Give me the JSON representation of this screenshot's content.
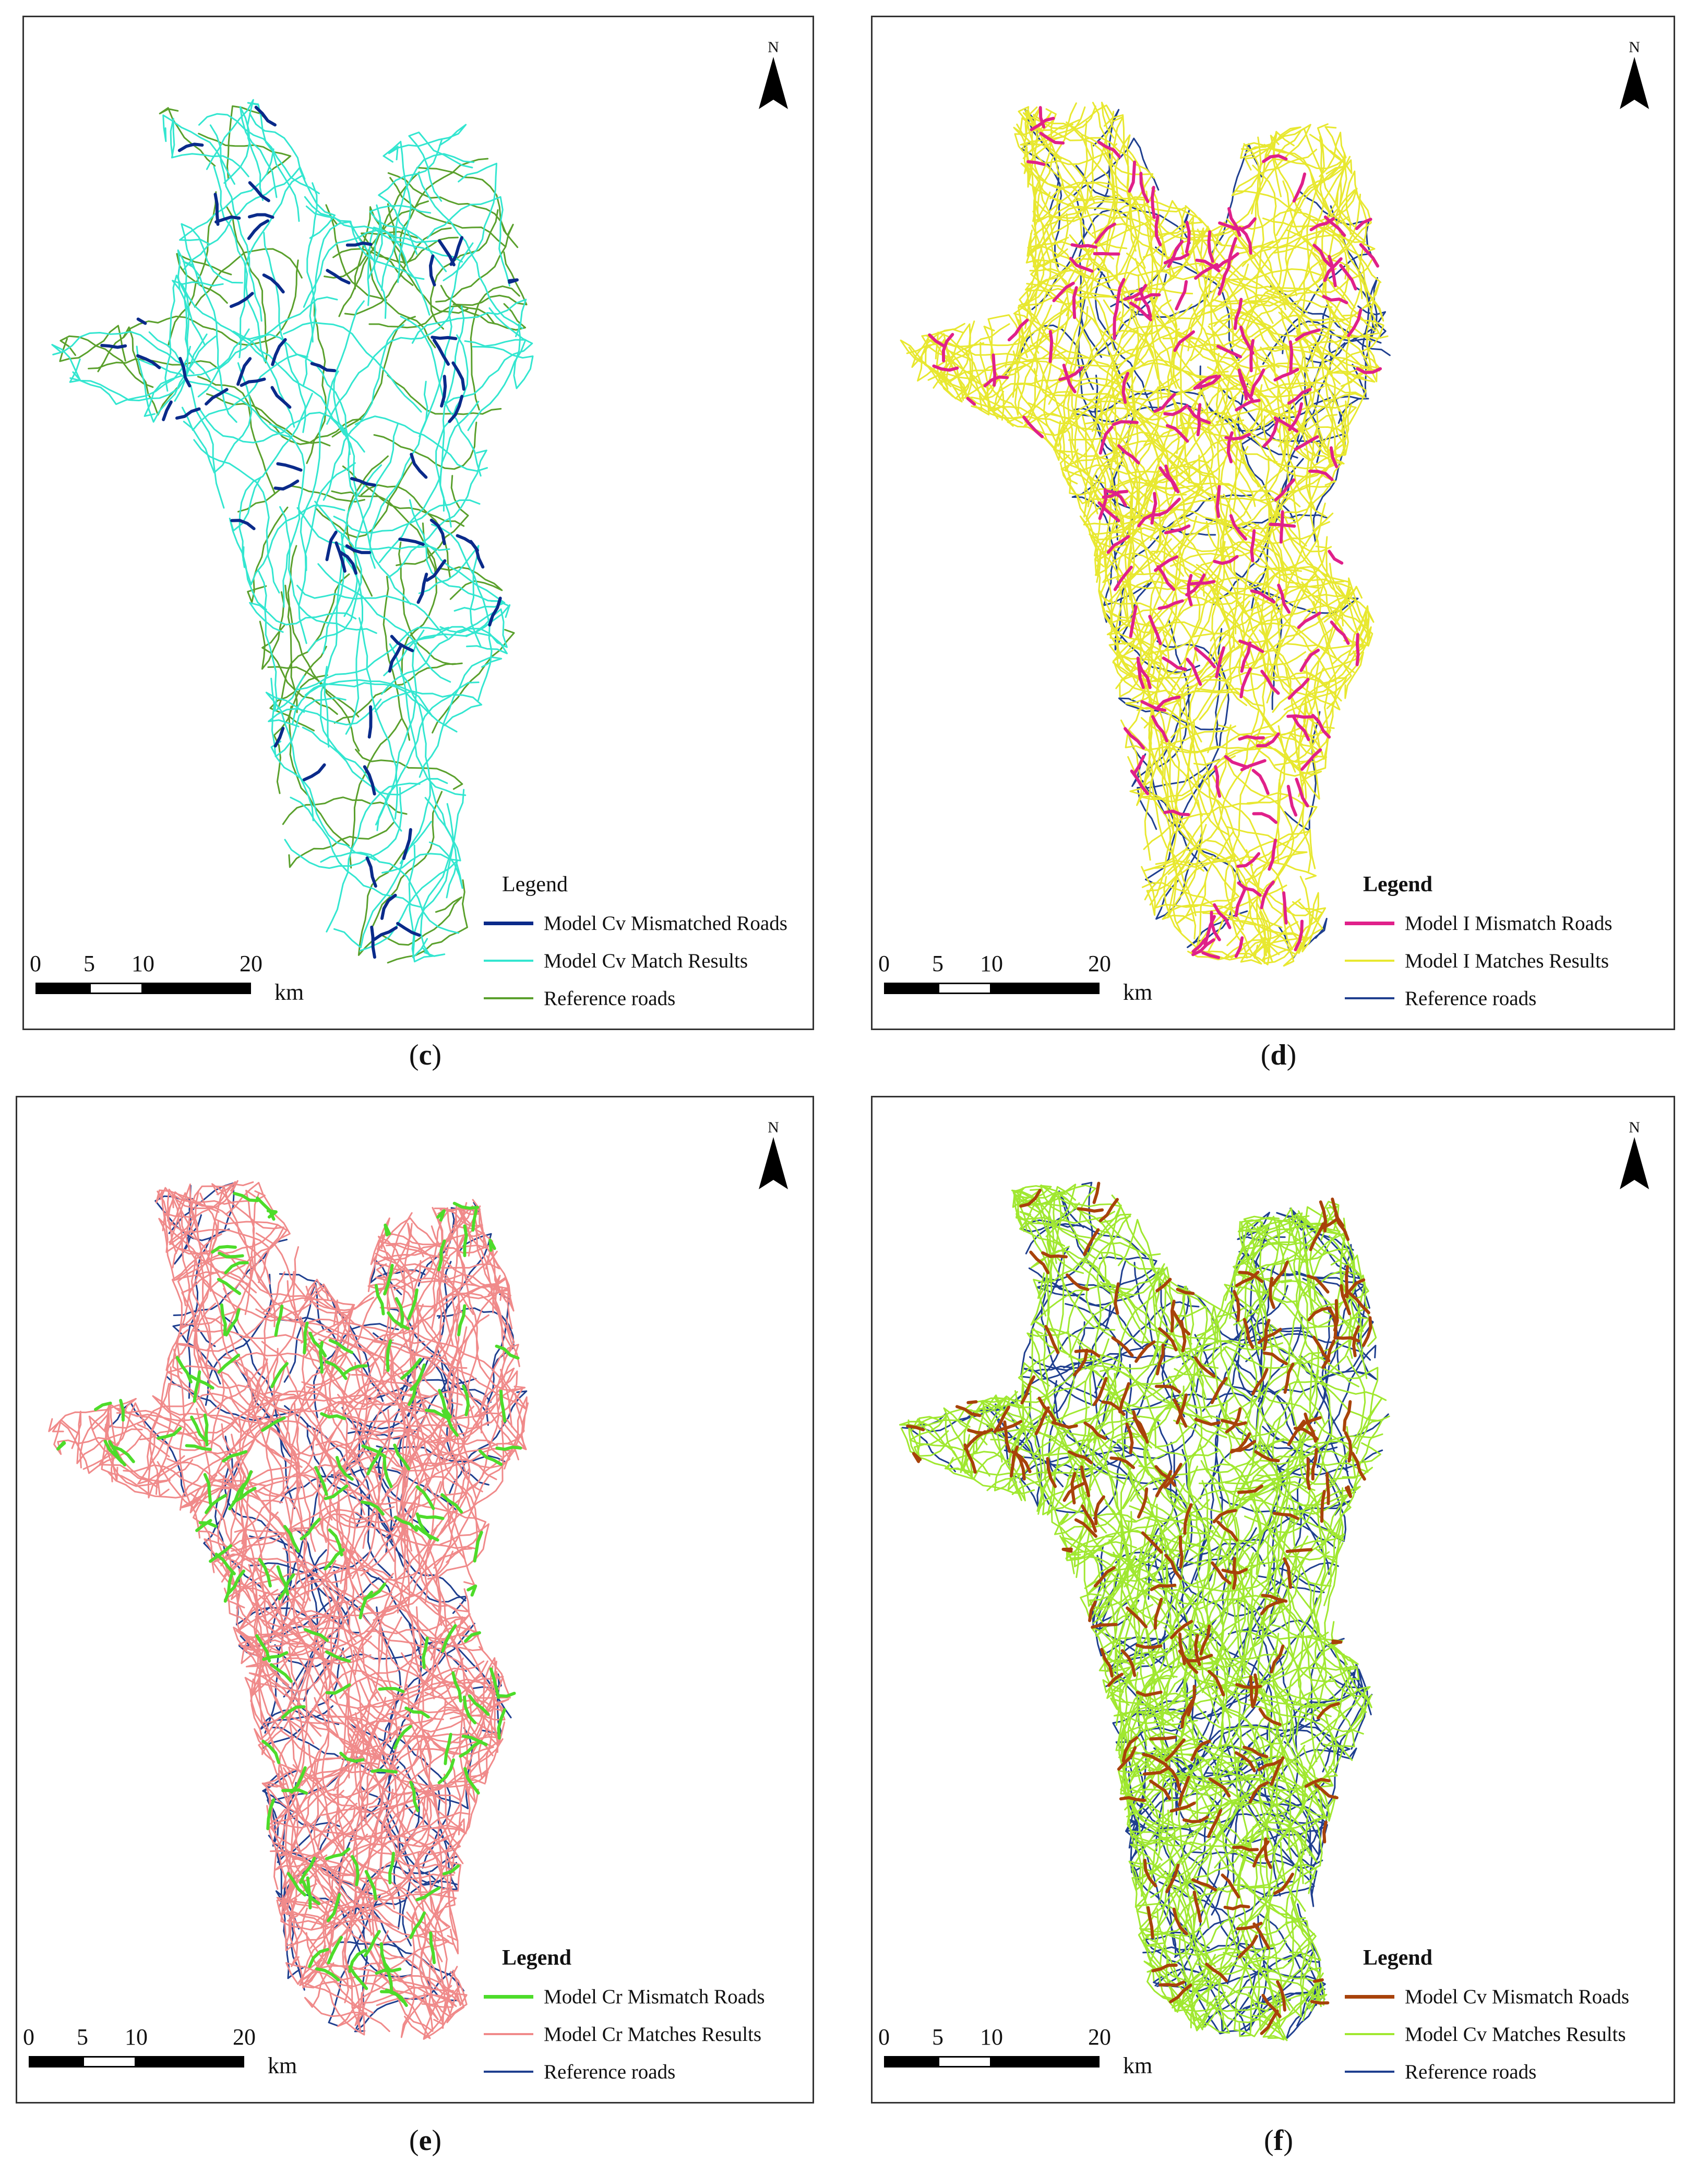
{
  "figure": {
    "panels": [
      {
        "id": "c",
        "caption": "c",
        "north_label": "N",
        "legend_title": "Legend",
        "legend_title_bold": false,
        "legend_items": [
          {
            "label": "Model Cv Mismatched Roads",
            "color": "#0a2a8a"
          },
          {
            "label": "Model Cv Match Results",
            "color": "#33e6d0"
          },
          {
            "label": "Reference roads",
            "color": "#5aa02c"
          }
        ],
        "scale_labels": [
          "0",
          "5",
          "10",
          "20"
        ],
        "scale_unit": "km",
        "colors": {
          "primary": "#33e6d0",
          "secondary": "#5aa02c",
          "mismatch": "#0a2a8a"
        }
      },
      {
        "id": "d",
        "caption": "d",
        "north_label": "N",
        "legend_title": "Legend",
        "legend_title_bold": true,
        "legend_items": [
          {
            "label": "Model I Mismatch Roads",
            "color": "#e0208a"
          },
          {
            "label": "Model I Matches Results",
            "color": "#e8e830"
          },
          {
            "label": "Reference roads",
            "color": "#1f3f8f"
          }
        ],
        "scale_labels": [
          "0",
          "5",
          "10",
          "20"
        ],
        "scale_unit": "km",
        "colors": {
          "primary": "#e8e830",
          "secondary": "#1f3f8f",
          "mismatch": "#e0208a"
        }
      },
      {
        "id": "e",
        "caption": "e",
        "north_label": "N",
        "legend_title": "Legend",
        "legend_title_bold": true,
        "legend_items": [
          {
            "label": "Model Cr Mismatch Roads",
            "color": "#4ddc2a"
          },
          {
            "label": "Model Cr Matches Results",
            "color": "#f08a8a"
          },
          {
            "label": "Reference roads",
            "color": "#1f3f8f"
          }
        ],
        "scale_labels": [
          "0",
          "5",
          "10",
          "20"
        ],
        "scale_unit": "km",
        "colors": {
          "primary": "#f08a8a",
          "secondary": "#1f3f8f",
          "mismatch": "#4ddc2a"
        }
      },
      {
        "id": "f",
        "caption": "f",
        "north_label": "N",
        "legend_title": "Legend",
        "legend_title_bold": true,
        "legend_items": [
          {
            "label": "Model Cv Mismatch Roads",
            "color": "#a8420a"
          },
          {
            "label": "Model Cv Matches Results",
            "color": "#a0e830"
          },
          {
            "label": "Reference roads",
            "color": "#1f3f8f"
          }
        ],
        "scale_labels": [
          "0",
          "5",
          "10",
          "20"
        ],
        "scale_unit": "km",
        "colors": {
          "primary": "#a0e830",
          "secondary": "#1f3f8f",
          "mismatch": "#a8420a"
        }
      }
    ]
  }
}
